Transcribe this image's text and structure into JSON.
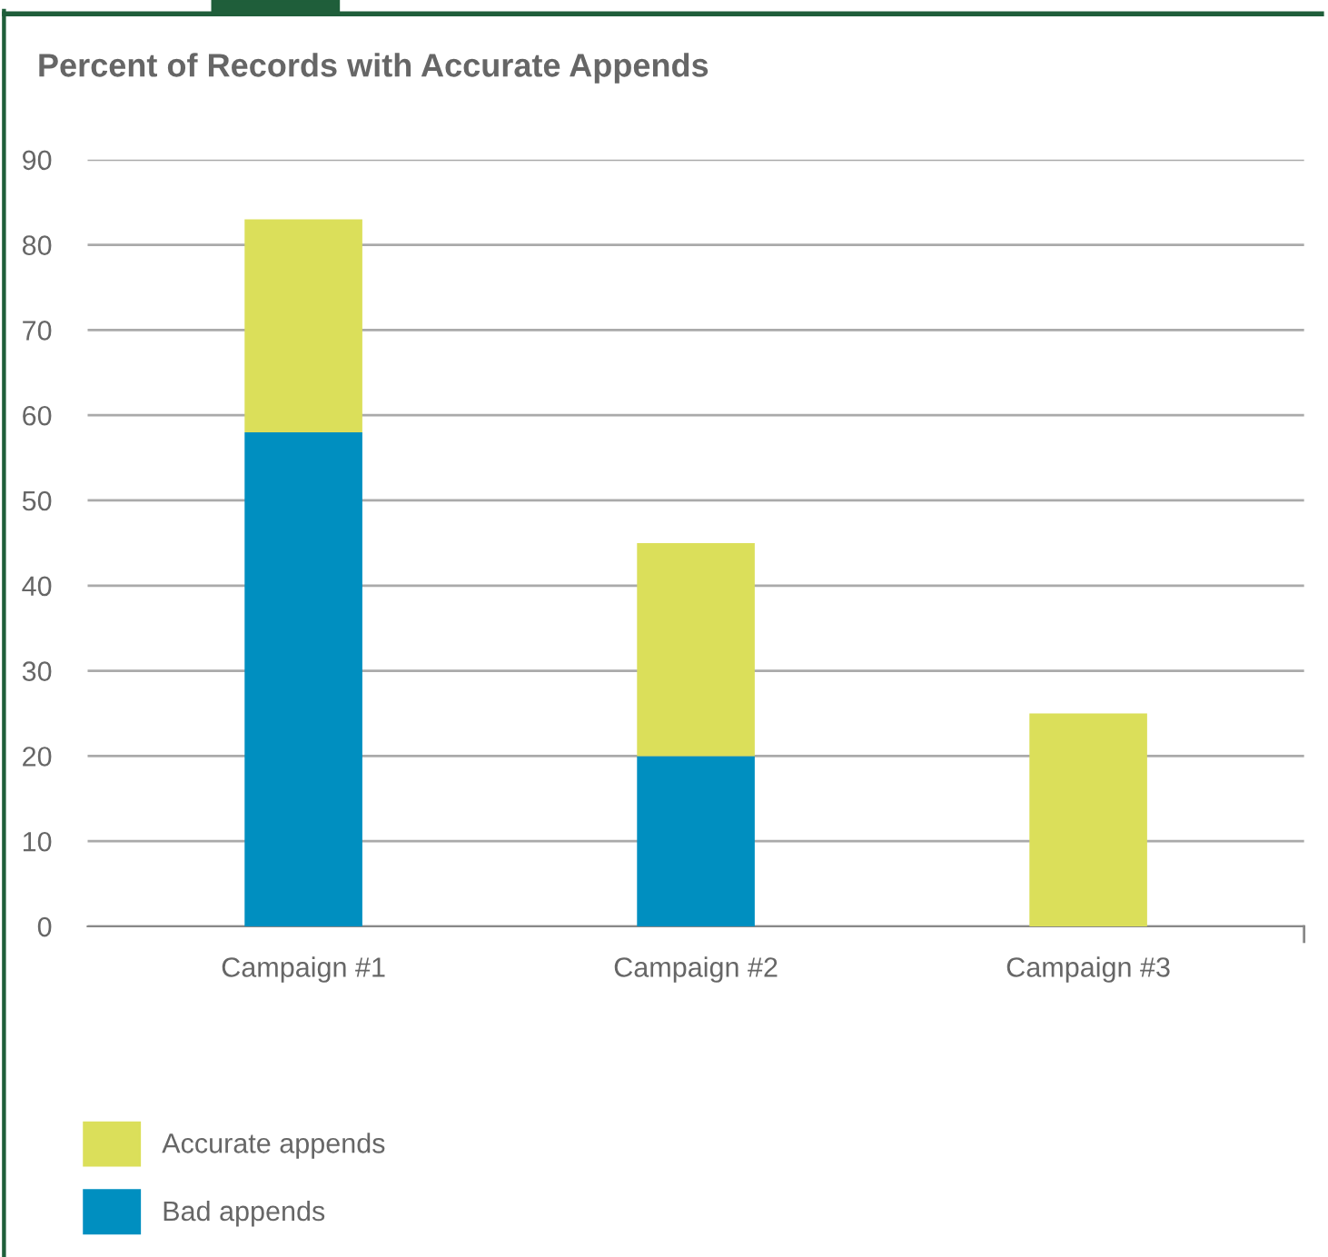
{
  "chart_data": {
    "type": "bar",
    "title": "Percent of Records with Accurate Appends",
    "categories": [
      "Campaign #1",
      "Campaign #2",
      "Campaign #3"
    ],
    "stacked": true,
    "series": [
      {
        "name": "Bad appends",
        "color": "#008fc0",
        "values": [
          58,
          20,
          0
        ]
      },
      {
        "name": "Accurate appends",
        "color": "#dbdf5a",
        "values": [
          25,
          25,
          25
        ]
      }
    ],
    "ylim": [
      0,
      90
    ],
    "yticks": [
      0,
      10,
      20,
      30,
      40,
      50,
      60,
      70,
      80,
      90
    ],
    "grid": "y",
    "legend": "bottom left"
  }
}
